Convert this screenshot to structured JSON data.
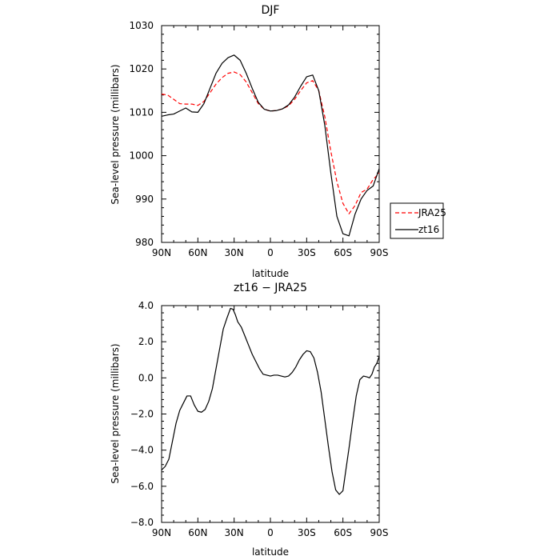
{
  "chart_data": [
    {
      "type": "line",
      "title": "DJF",
      "xlabel": "latitude",
      "ylabel": "Sea-level pressure (millibars)",
      "xlim": [
        90,
        -90
      ],
      "ylim": [
        980,
        1030
      ],
      "x_ticks": [
        90,
        60,
        30,
        0,
        -30,
        -60,
        -90
      ],
      "x_tick_labels": [
        "90N",
        "60N",
        "30N",
        "0",
        "30S",
        "60S",
        "90S"
      ],
      "y_ticks": [
        980,
        990,
        1000,
        1010,
        1020,
        1030
      ],
      "y_tick_labels": [
        "980",
        "990",
        "1000",
        "1010",
        "1020",
        "1030"
      ],
      "grid": false,
      "legend_position": "right",
      "series": [
        {
          "name": "JRA25",
          "color": "#ff0000",
          "dash": "dashed",
          "points": [
            [
              90,
              1014.2
            ],
            [
              85,
              1014.0
            ],
            [
              80,
              1013
            ],
            [
              75,
              1012
            ],
            [
              70,
              1011.9
            ],
            [
              65,
              1011.9
            ],
            [
              60,
              1011.6
            ],
            [
              55,
              1012.5
            ],
            [
              50,
              1014.5
            ],
            [
              45,
              1016.5
            ],
            [
              40,
              1018
            ],
            [
              35,
              1019
            ],
            [
              30,
              1019.3
            ],
            [
              25,
              1018.7
            ],
            [
              20,
              1017
            ],
            [
              15,
              1014.5
            ],
            [
              10,
              1012
            ],
            [
              5,
              1010.7
            ],
            [
              0,
              1010.3
            ],
            [
              -5,
              1010.4
            ],
            [
              -10,
              1010.8
            ],
            [
              -15,
              1011.5
            ],
            [
              -20,
              1013
            ],
            [
              -25,
              1015
            ],
            [
              -30,
              1016.8
            ],
            [
              -35,
              1017.3
            ],
            [
              -40,
              1015
            ],
            [
              -45,
              1009
            ],
            [
              -50,
              1001
            ],
            [
              -55,
              994
            ],
            [
              -60,
              989
            ],
            [
              -65,
              986.6
            ],
            [
              -70,
              988.5
            ],
            [
              -75,
              991.5
            ],
            [
              -80,
              992.3
            ],
            [
              -85,
              994.5
            ],
            [
              -90,
              996
            ]
          ]
        },
        {
          "name": "zt16",
          "color": "#000000",
          "dash": "solid",
          "points": [
            [
              90,
              1009.1
            ],
            [
              85,
              1009.4
            ],
            [
              80,
              1009.6
            ],
            [
              75,
              1010.3
            ],
            [
              70,
              1011.0
            ],
            [
              65,
              1010.1
            ],
            [
              60,
              1010
            ],
            [
              55,
              1012
            ],
            [
              50,
              1015.5
            ],
            [
              45,
              1019
            ],
            [
              40,
              1021.3
            ],
            [
              35,
              1022.6
            ],
            [
              30,
              1023.2
            ],
            [
              25,
              1022
            ],
            [
              20,
              1019
            ],
            [
              15,
              1015.5
            ],
            [
              10,
              1012.3
            ],
            [
              5,
              1010.7
            ],
            [
              0,
              1010.3
            ],
            [
              -5,
              1010.4
            ],
            [
              -10,
              1010.8
            ],
            [
              -15,
              1011.7
            ],
            [
              -20,
              1013.5
            ],
            [
              -25,
              1016
            ],
            [
              -30,
              1018.2
            ],
            [
              -35,
              1018.6
            ],
            [
              -40,
              1015
            ],
            [
              -45,
              1007
            ],
            [
              -50,
              996
            ],
            [
              -55,
              986
            ],
            [
              -60,
              982
            ],
            [
              -65,
              981.5
            ],
            [
              -70,
              986.5
            ],
            [
              -75,
              990
            ],
            [
              -80,
              992
            ],
            [
              -85,
              993
            ],
            [
              -90,
              997
            ]
          ]
        }
      ]
    },
    {
      "type": "line",
      "title": "zt16 − JRA25",
      "xlabel": "latitude",
      "ylabel": "Sea-level pressure (millibars)",
      "xlim": [
        90,
        -90
      ],
      "ylim": [
        -8.0,
        4.0
      ],
      "x_ticks": [
        90,
        60,
        30,
        0,
        -30,
        -60,
        -90
      ],
      "x_tick_labels": [
        "90N",
        "60N",
        "30N",
        "0",
        "30S",
        "60S",
        "90S"
      ],
      "y_ticks": [
        -8,
        -6,
        -4,
        -2,
        0,
        2,
        4
      ],
      "y_tick_labels": [
        "−8.0",
        "−6.0",
        "−4.0",
        "−2.0",
        "0.0",
        "2.0",
        "4.0"
      ],
      "grid": false,
      "series": [
        {
          "name": "",
          "color": "#000000",
          "dash": "solid",
          "points": [
            [
              90,
              -5.1
            ],
            [
              87,
              -4.9
            ],
            [
              84,
              -4.5
            ],
            [
              81,
              -3.5
            ],
            [
              78,
              -2.5
            ],
            [
              75,
              -1.8
            ],
            [
              72,
              -1.4
            ],
            [
              69,
              -1.0
            ],
            [
              66,
              -1.0
            ],
            [
              63,
              -1.5
            ],
            [
              60,
              -1.85
            ],
            [
              57,
              -1.9
            ],
            [
              54,
              -1.75
            ],
            [
              51,
              -1.3
            ],
            [
              48,
              -0.6
            ],
            [
              45,
              0.5
            ],
            [
              42,
              1.6
            ],
            [
              39,
              2.7
            ],
            [
              36,
              3.3
            ],
            [
              33,
              3.85
            ],
            [
              31,
              3.8
            ],
            [
              29,
              3.5
            ],
            [
              27,
              3.1
            ],
            [
              24,
              2.8
            ],
            [
              21,
              2.3
            ],
            [
              18,
              1.8
            ],
            [
              15,
              1.3
            ],
            [
              12,
              0.9
            ],
            [
              9,
              0.5
            ],
            [
              6,
              0.2
            ],
            [
              3,
              0.15
            ],
            [
              0,
              0.1
            ],
            [
              -3,
              0.15
            ],
            [
              -6,
              0.15
            ],
            [
              -9,
              0.1
            ],
            [
              -12,
              0.05
            ],
            [
              -15,
              0.1
            ],
            [
              -18,
              0.3
            ],
            [
              -21,
              0.6
            ],
            [
              -24,
              1.0
            ],
            [
              -27,
              1.3
            ],
            [
              -30,
              1.5
            ],
            [
              -33,
              1.45
            ],
            [
              -36,
              1.1
            ],
            [
              -39,
              0.3
            ],
            [
              -42,
              -0.8
            ],
            [
              -45,
              -2.3
            ],
            [
              -48,
              -3.8
            ],
            [
              -51,
              -5.2
            ],
            [
              -54,
              -6.2
            ],
            [
              -57,
              -6.45
            ],
            [
              -60,
              -6.25
            ],
            [
              -62,
              -5.3
            ],
            [
              -65,
              -3.9
            ],
            [
              -68,
              -2.4
            ],
            [
              -71,
              -1.0
            ],
            [
              -74,
              -0.1
            ],
            [
              -77,
              0.1
            ],
            [
              -80,
              0.05
            ],
            [
              -82,
              0.0
            ],
            [
              -84,
              0.2
            ],
            [
              -86,
              0.6
            ],
            [
              -88,
              0.8
            ],
            [
              -90,
              1.2
            ]
          ]
        }
      ]
    }
  ]
}
